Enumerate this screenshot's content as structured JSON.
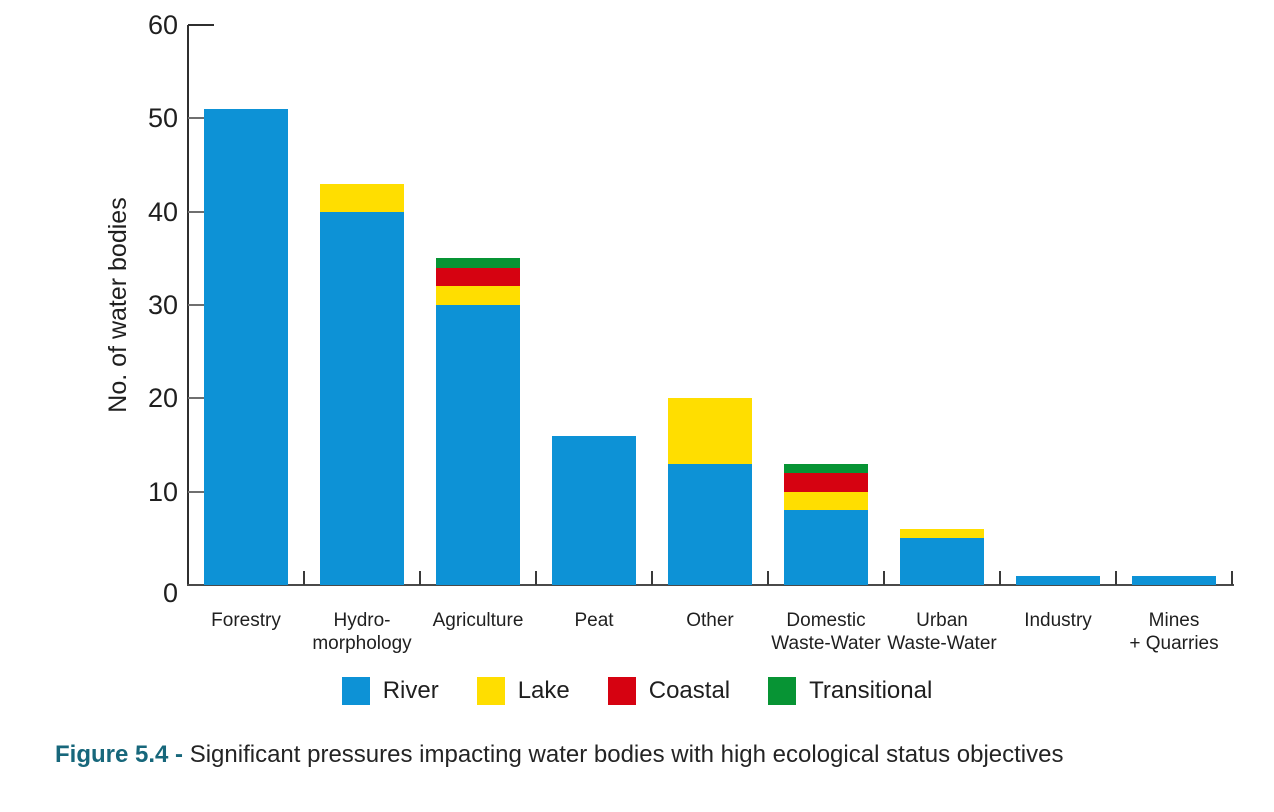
{
  "figure": {
    "caption": {
      "prefix": "Figure 5.4 - ",
      "text": "Significant pressures impacting water bodies with high ecological status objectives",
      "prefix_color": "#17677B"
    }
  },
  "chart_data": {
    "type": "bar",
    "stacked": true,
    "title": "Figure 5.4 - Significant pressures impacting water bodies with high ecological status objectives",
    "xlabel": "",
    "ylabel": "No. of water bodies",
    "ylim": [
      0,
      60
    ],
    "yticks": [
      0,
      10,
      20,
      30,
      40,
      50,
      60
    ],
    "grid": false,
    "legend_position": "bottom",
    "categories": [
      "Forestry",
      "Hydro-morphology",
      "Agriculture",
      "Peat",
      "Other",
      "Domestic Waste-Water",
      "Urban Waste-Water",
      "Industry",
      "Mines + Quarries"
    ],
    "category_label_lines": [
      [
        "Forestry"
      ],
      [
        "Hydro-",
        "morphology"
      ],
      [
        "Agriculture"
      ],
      [
        "Peat"
      ],
      [
        "Other"
      ],
      [
        "Domestic",
        "Waste-Water"
      ],
      [
        "Urban",
        "Waste-Water"
      ],
      [
        "Industry"
      ],
      [
        "Mines",
        "+ Quarries"
      ]
    ],
    "series": [
      {
        "name": "River",
        "color": "#0D92D6",
        "values": [
          51,
          40,
          30,
          16,
          13,
          8,
          5,
          1,
          1
        ]
      },
      {
        "name": "Lake",
        "color": "#FFDE00",
        "values": [
          0,
          3,
          2,
          0,
          7,
          2,
          1,
          0,
          0
        ]
      },
      {
        "name": "Coastal",
        "color": "#D60211",
        "values": [
          0,
          0,
          2,
          0,
          0,
          2,
          0,
          0,
          0
        ]
      },
      {
        "name": "Transitional",
        "color": "#079434",
        "values": [
          0,
          0,
          1,
          0,
          0,
          1,
          0,
          0,
          0
        ]
      }
    ],
    "totals": [
      51,
      43,
      35,
      16,
      20,
      13,
      6,
      1,
      1
    ]
  }
}
